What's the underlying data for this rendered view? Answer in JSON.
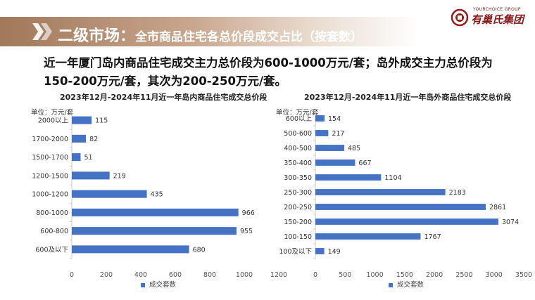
{
  "header": {
    "title_main": "二级市场：",
    "title_sub": "全市商品住宅各总价段成交占比（按套数）"
  },
  "logo": {
    "tagline": "YOURCHOICE GROUP",
    "name": "有巢氏集团",
    "icon": "company-logo-icon"
  },
  "headline": "近一年厦门岛内商品住宅成交主力总价段为600-1000万元/套；岛外成交主力总价段为150-200万元/套，其次为200-250万元/套。",
  "colors": {
    "bar": "#4472c4",
    "title_bar": "#a0785a"
  },
  "chart_data": [
    {
      "type": "bar",
      "orientation": "horizontal",
      "title": "2023年12月-2024年11月近一年岛内商品住宅成交总价段",
      "unit_label": "单位：万元/套",
      "categories": [
        "2000以上",
        "1700-2000",
        "1500-1700",
        "1200-1500",
        "1000-1200",
        "800-1000",
        "600-800",
        "600及以下"
      ],
      "series": [
        {
          "name": "成交套数",
          "values": [
            115,
            82,
            51,
            219,
            435,
            966,
            955,
            680
          ]
        }
      ],
      "xlim": [
        0,
        1200
      ],
      "xticks": [
        0,
        200,
        400,
        600,
        800,
        1000,
        1200
      ],
      "grid": false,
      "legend_position": "bottom"
    },
    {
      "type": "bar",
      "orientation": "horizontal",
      "title": "2023年12月-2024年11月近一年岛外商品住宅成交总价段",
      "unit_label": "单位：万元/套",
      "categories": [
        "600以上",
        "500-600",
        "400-500",
        "350-400",
        "300-350",
        "250-300",
        "200-250",
        "150-200",
        "100-150",
        "100及以下"
      ],
      "series": [
        {
          "name": "成交套数",
          "values": [
            154,
            217,
            485,
            667,
            1104,
            2183,
            2861,
            3074,
            1767,
            149
          ]
        }
      ],
      "xlim": [
        0,
        3500
      ],
      "xticks": [
        0,
        500,
        1000,
        1500,
        2000,
        2500,
        3000,
        3500
      ],
      "grid": false,
      "legend_position": "bottom"
    }
  ]
}
